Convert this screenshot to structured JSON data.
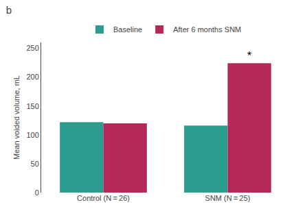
{
  "chart_data": {
    "type": "bar",
    "title": "b",
    "ylabel": "Mean voided volume, mL",
    "categories": [
      "Control (N = 26)",
      "SNM (N = 25)"
    ],
    "series": [
      {
        "name": "Baseline",
        "color": "#2a9d8f",
        "values": [
          122,
          116
        ]
      },
      {
        "name": "After 6 months SNM",
        "color": "#b5285a",
        "values": [
          120,
          224
        ]
      }
    ],
    "ylim": [
      0,
      260
    ],
    "yticks": [
      0,
      50,
      100,
      150,
      200,
      250
    ],
    "grid": false,
    "legend": "upper center",
    "annotations": [
      {
        "text": "*",
        "category": "SNM (N = 25)",
        "series": "After 6 months SNM"
      }
    ]
  }
}
